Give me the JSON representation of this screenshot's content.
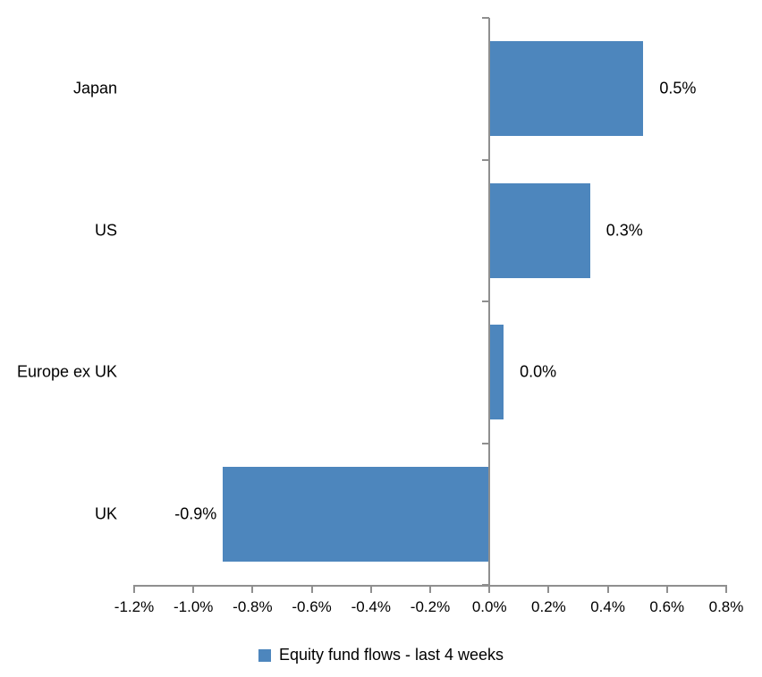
{
  "chart_data": {
    "type": "bar",
    "orientation": "horizontal",
    "title": "",
    "categories": [
      "Japan",
      "US",
      "Europe ex UK",
      "UK"
    ],
    "values": [
      0.5,
      0.3,
      0.0,
      -0.9
    ],
    "bar_lengths_pct": [
      0.52,
      0.34,
      0.048,
      -0.9
    ],
    "data_labels": [
      "0.5%",
      "0.3%",
      "0.0%",
      "-0.9%"
    ],
    "x_tick_labels": [
      "-1.2%",
      "-1.0%",
      "-0.8%",
      "-0.6%",
      "-0.4%",
      "-0.2%",
      "0.0%",
      "0.2%",
      "0.4%",
      "0.6%",
      "0.8%"
    ],
    "x_tick_values": [
      -1.2,
      -1.0,
      -0.8,
      -0.6,
      -0.4,
      -0.2,
      0.0,
      0.2,
      0.4,
      0.6,
      0.8
    ],
    "xlim": [
      -1.2,
      0.8
    ],
    "unit": "%",
    "grid": false,
    "legend_position": "bottom",
    "legend": [
      {
        "label": "Equity fund flows - last 4 weeks",
        "color": "#4D86BD"
      }
    ],
    "colors": {
      "bar": "#4D86BD",
      "axis": "#8F8F8F",
      "text": "#000000",
      "background": "#FFFFFF"
    }
  }
}
